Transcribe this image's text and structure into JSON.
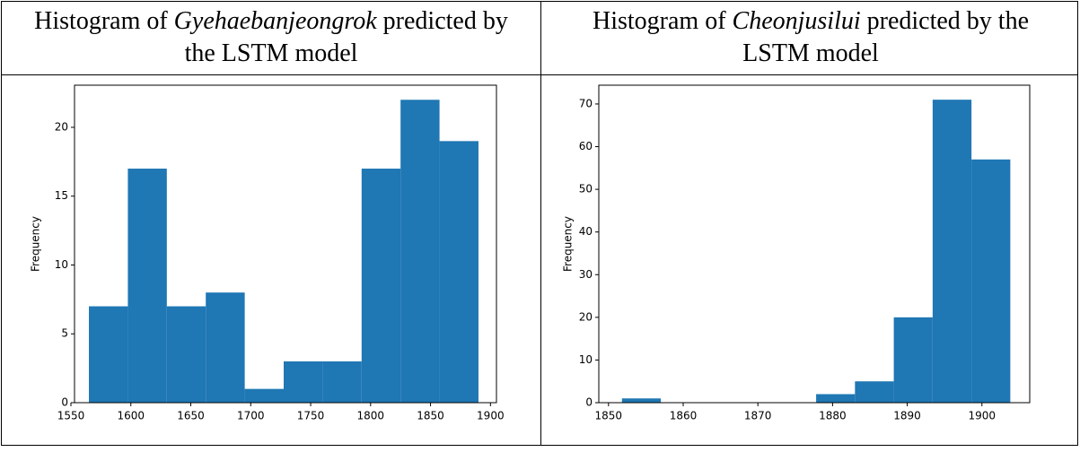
{
  "chart_data": [
    {
      "type": "histogram",
      "title_start": "Histogram of",
      "title_emphasis": "Gyehaebanjeongrok",
      "title_end": "predicted by the LSTM model",
      "ylabel": "Frequency",
      "bins": [
        1565,
        1597.5,
        1630,
        1662.5,
        1695,
        1727.5,
        1760,
        1792.5,
        1825,
        1857.5,
        1890
      ],
      "values": [
        7,
        17,
        7,
        8,
        1,
        3,
        3,
        17,
        22,
        19
      ],
      "color": "#1f77b4",
      "xlim": [
        1553,
        1905
      ],
      "xticks": [
        1550,
        1600,
        1650,
        1700,
        1750,
        1800,
        1850,
        1900
      ],
      "ylim": [
        0,
        23.06
      ],
      "yticks": [
        0,
        5,
        10,
        15,
        20
      ]
    },
    {
      "type": "histogram",
      "title_start": "Histogram of",
      "title_emphasis": "Cheonjusilui",
      "title_end": "predicted by the LSTM model",
      "ylabel": "Frequency",
      "bins": [
        1851.8,
        1857,
        1862.2,
        1867.4,
        1872.6,
        1877.8,
        1883,
        1888.2,
        1893.4,
        1898.6,
        1903.8
      ],
      "values": [
        1,
        0,
        0,
        0,
        0,
        2,
        5,
        20,
        71,
        57
      ],
      "color": "#1f77b4",
      "xlim": [
        1848.7,
        1906.4
      ],
      "xticks": [
        1850,
        1860,
        1870,
        1880,
        1890,
        1900
      ],
      "ylim": [
        0,
        74.4
      ],
      "yticks": [
        0,
        10,
        20,
        30,
        40,
        50,
        60,
        70
      ]
    }
  ]
}
